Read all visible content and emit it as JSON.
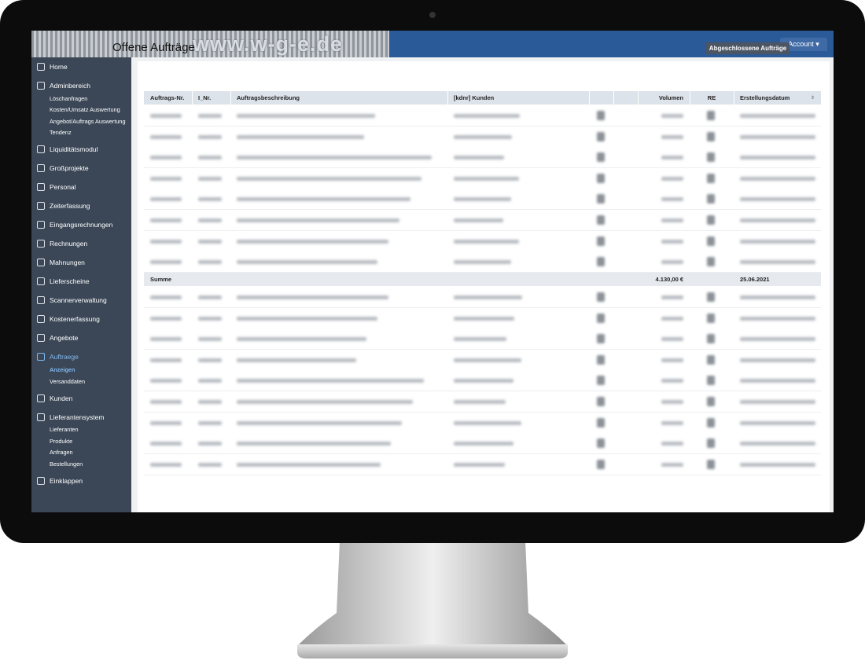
{
  "header": {
    "logo": "www.w-g-e.de",
    "account": "Account"
  },
  "sidebar": {
    "items": [
      {
        "label": "Home"
      },
      {
        "label": "Adminbereich",
        "children": [
          "Löschanfragen",
          "Kosten/Umsatz Auswertung",
          "Angebot/Auftrags Auswertung",
          "Tendenz"
        ]
      },
      {
        "label": "Liquiditätsmodul"
      },
      {
        "label": "Großprojekte"
      },
      {
        "label": "Personal"
      },
      {
        "label": "Zeiterfassung"
      },
      {
        "label": "Eingangsrechnungen"
      },
      {
        "label": "Rechnungen"
      },
      {
        "label": "Mahnungen"
      },
      {
        "label": "Lieferscheine"
      },
      {
        "label": "Scannerverwaltung"
      },
      {
        "label": "Kostenerfassung"
      },
      {
        "label": "Angebote"
      },
      {
        "label": "Auftraege",
        "active": true,
        "children": [
          "Anzeigen",
          "Versanddaten"
        ],
        "active_child": 0
      },
      {
        "label": "Kunden"
      },
      {
        "label": "Lieferantensystem",
        "children": [
          "Lieferanten",
          "Produkte",
          "Anfragen",
          "Bestellungen"
        ]
      },
      {
        "label": "Einklappen"
      }
    ]
  },
  "content": {
    "title": "Offene Aufträge",
    "button": "Abgeschlossene Aufträge",
    "table": {
      "headers": [
        "Auftrags-Nr.",
        "I_Nr.",
        "Auftragsbeschreibung",
        "[kdnr] Kunden",
        "Volumen",
        "RE",
        "Erstellungsdatum"
      ],
      "summary": {
        "label": "Summe",
        "volume": "4.130,00 €",
        "date": "25.06.2021"
      }
    }
  }
}
